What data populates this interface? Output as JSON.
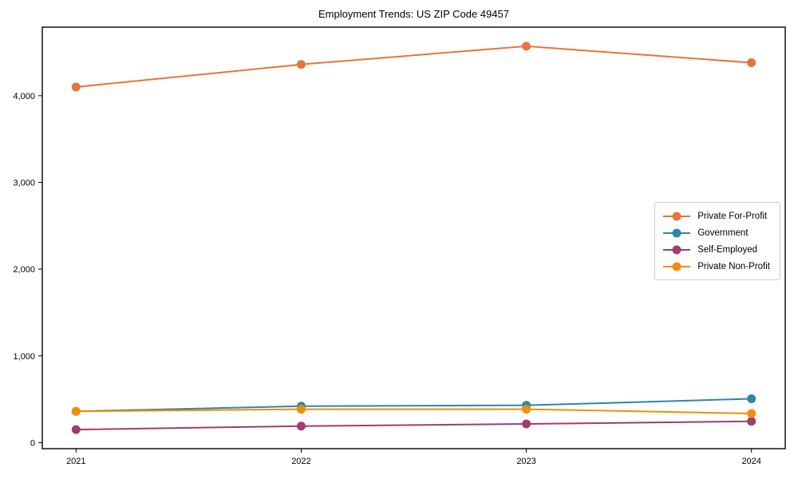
{
  "chart_data": {
    "type": "line",
    "title": "Employment Trends: US ZIP Code 49457",
    "categories": [
      "2021",
      "2022",
      "2023",
      "2024"
    ],
    "series": [
      {
        "name": "Private For-Profit",
        "color": "#E8743B",
        "values": [
          4100,
          4360,
          4570,
          4380
        ]
      },
      {
        "name": "Government",
        "color": "#2E86AB",
        "values": [
          360,
          420,
          430,
          505
        ]
      },
      {
        "name": "Self-Employed",
        "color": "#A23B72",
        "values": [
          150,
          190,
          215,
          245
        ]
      },
      {
        "name": "Private Non-Profit",
        "color": "#F18F01",
        "values": [
          360,
          385,
          385,
          335
        ]
      }
    ],
    "xlabel": "",
    "ylabel": "",
    "yticks": [
      0,
      1000,
      2000,
      3000,
      4000
    ],
    "ytick_labels": [
      "0",
      "1,000",
      "2,000",
      "3,000",
      "4,000"
    ],
    "ylim": [
      -70,
      4790
    ],
    "x_margin": 0.15,
    "grid": false,
    "legend_position": "center-right"
  }
}
